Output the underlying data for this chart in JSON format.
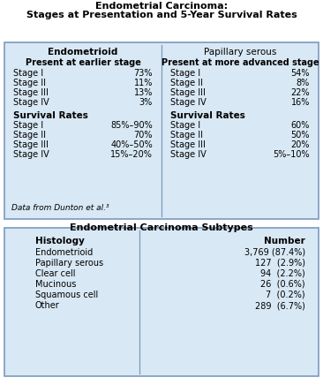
{
  "title1_line1": "Endometrial Carcinoma:",
  "title1_line2": "Stages at Presentation and 5-Year Survival Rates",
  "title2": "Endometrial Carcinoma Subtypes",
  "bg_color": "#d8e8f4",
  "white_bg": "#ffffff",
  "border_color": "#7a9abf",
  "box1": {
    "col1_header": "Endometrioid",
    "col1_subheader": "Present at earlier stage",
    "col1_stages": [
      "Stage I",
      "Stage II",
      "Stage III",
      "Stage IV"
    ],
    "col1_stage_vals": [
      "73%",
      "11%",
      "13%",
      "3%"
    ],
    "col1_survival_header": "Survival Rates",
    "col1_survival_vals": [
      "85%–90%",
      "70%",
      "40%–50%",
      "15%–20%"
    ],
    "col2_header": "Papillary serous",
    "col2_subheader": "Present at more advanced stage",
    "col2_stages": [
      "Stage I",
      "Stage II",
      "Stage III",
      "Stage IV"
    ],
    "col2_stage_vals": [
      "54%",
      "8%",
      "22%",
      "16%"
    ],
    "col2_survival_header": "Survival Rates",
    "col2_survival_vals": [
      "60%",
      "50%",
      "20%",
      "5%–10%"
    ],
    "footnote": "Data from Dunton et al.³"
  },
  "box2": {
    "col1_header": "Histology",
    "col2_header": "Number",
    "rows": [
      [
        "Endometrioid",
        "3,769 (87.4%)"
      ],
      [
        "Papillary serous",
        "127  (2.9%)"
      ],
      [
        "Clear cell",
        "94  (2.2%)"
      ],
      [
        "Mucinous",
        "26  (0.6%)"
      ],
      [
        "Squamous cell",
        "7  (0.2%)"
      ],
      [
        "Other",
        "289  (6.7%)"
      ]
    ]
  }
}
